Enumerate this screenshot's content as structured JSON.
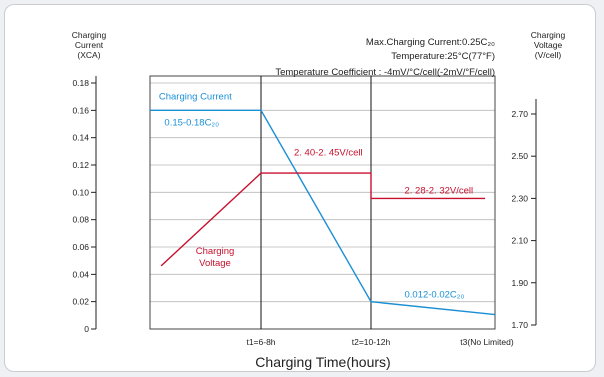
{
  "chart_data": {
    "type": "line",
    "left_axis_title": [
      "Charging",
      "Current",
      "(XCA)"
    ],
    "right_axis_title": [
      "Charging",
      "Voltage",
      "(V/cell)"
    ],
    "info_lines": [
      "Max.Charging Current:0.25C₂₀",
      "Temperature:25°C(77°F)",
      "Temperature  Coefficient : -4mV/°C/cell(-2mV/°F/cell)"
    ],
    "xlabel": "Charging Time(hours)",
    "x_ticks": [
      "t1=6-8h",
      "t2=10-12h",
      "t3(No Limited)"
    ],
    "y_left": {
      "ylim": [
        0,
        0.18
      ],
      "ticks": [
        0,
        0.02,
        0.04,
        0.06,
        0.08,
        0.1,
        0.12,
        0.14,
        0.16,
        0.18
      ],
      "tick_labels": [
        "0",
        "0.02",
        "0.04",
        "0.06",
        "0.08",
        "0.10",
        "0.12",
        "0.14",
        "0.16",
        "0.18"
      ]
    },
    "y_right": {
      "ylim": [
        1.7,
        2.9
      ],
      "ticks": [
        1.7,
        1.9,
        2.1,
        2.3,
        2.5,
        2.7
      ],
      "tick_labels": [
        "1.70",
        "1.90",
        "2.10",
        "2.30",
        "2.50",
        "2.70"
      ]
    },
    "grid": true,
    "series": [
      {
        "name": "Charging Current",
        "axis": "left",
        "color": "#1a8fd6",
        "points": [
          [
            0,
            0.16
          ],
          [
            1,
            0.16
          ],
          [
            2,
            0.02
          ],
          [
            3,
            0.0105
          ]
        ]
      },
      {
        "name": "Charging Voltage",
        "axis": "right",
        "color": "#c8102e",
        "points": [
          [
            0.1,
            1.98
          ],
          [
            1,
            2.42
          ],
          [
            2,
            2.42
          ],
          [
            2,
            2.3
          ],
          [
            2.92,
            2.3
          ]
        ]
      }
    ],
    "annotations": [
      {
        "text": "Charging Current",
        "color": "#1a8fd6",
        "at": [
          0.08,
          0.168
        ]
      },
      {
        "text": "0.15-0.18C₂₀",
        "color": "#1a8fd6",
        "at": [
          0.13,
          0.149
        ]
      },
      {
        "text": "2. 40-2. 45V/cell",
        "color": "#c8102e",
        "at": [
          1.3,
          0.127
        ]
      },
      {
        "text": "2. 28-2. 32V/cell",
        "color": "#c8102e",
        "at": [
          2.27,
          0.099
        ]
      },
      {
        "text": "0.012-0.02C₂₀",
        "color": "#1a8fd6",
        "at": [
          2.27,
          0.023
        ]
      }
    ],
    "voltage_label": [
      "Charging",
      "Voltage"
    ]
  }
}
